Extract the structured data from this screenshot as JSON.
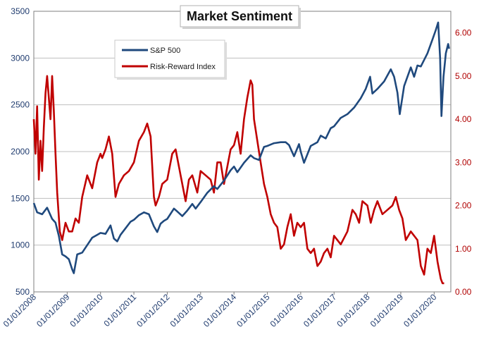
{
  "chart_data": {
    "type": "line",
    "title": "Market Sentiment",
    "colors": {
      "sp500": "#1f497d",
      "risk_reward": "#c00000",
      "grid": "#bfbfbf",
      "frame": "#7f7f7f"
    },
    "x_ticks": [
      "01/01/2008",
      "01/01/2009",
      "01/01/2010",
      "01/01/2011",
      "01/01/2012",
      "01/01/2013",
      "01/01/2014",
      "01/01/2015",
      "01/01/2016",
      "01/01/2017",
      "01/01/2018",
      "01/01/2019",
      "01/01/2020"
    ],
    "xlim": [
      2008.0,
      2020.5
    ],
    "left_axis": {
      "ylim": [
        500,
        3500
      ],
      "ticks": [
        "500",
        "1000",
        "1500",
        "2000",
        "2500",
        "3000",
        "3500"
      ]
    },
    "right_axis": {
      "ylim": [
        0.0,
        6.5
      ],
      "ticks": [
        "0.00",
        "1.00",
        "2.00",
        "3.00",
        "4.00",
        "5.00",
        "6.00"
      ]
    },
    "grid": "horizontal",
    "legend_position": "upper-left",
    "series": [
      {
        "name": "S&P 500",
        "axis": "left",
        "x": [
          2008.0,
          2008.1,
          2008.25,
          2008.4,
          2008.55,
          2008.65,
          2008.75,
          2008.85,
          2008.95,
          2009.05,
          2009.15,
          2009.2,
          2009.3,
          2009.45,
          2009.6,
          2009.75,
          2009.9,
          2010.0,
          2010.15,
          2010.3,
          2010.4,
          2010.5,
          2010.6,
          2010.75,
          2010.9,
          2011.0,
          2011.15,
          2011.3,
          2011.45,
          2011.6,
          2011.7,
          2011.8,
          2011.9,
          2012.0,
          2012.2,
          2012.3,
          2012.45,
          2012.6,
          2012.75,
          2012.85,
          2013.0,
          2013.2,
          2013.4,
          2013.5,
          2013.7,
          2013.9,
          2014.0,
          2014.1,
          2014.3,
          2014.5,
          2014.6,
          2014.75,
          2014.9,
          2015.0,
          2015.2,
          2015.4,
          2015.55,
          2015.65,
          2015.8,
          2015.95,
          2016.0,
          2016.1,
          2016.3,
          2016.5,
          2016.6,
          2016.75,
          2016.9,
          2017.0,
          2017.2,
          2017.4,
          2017.6,
          2017.8,
          2017.95,
          2018.08,
          2018.15,
          2018.3,
          2018.5,
          2018.7,
          2018.8,
          2018.9,
          2018.97,
          2019.1,
          2019.3,
          2019.4,
          2019.5,
          2019.6,
          2019.8,
          2019.95,
          2020.05,
          2020.12,
          2020.18,
          2020.22,
          2020.28,
          2020.35,
          2020.42,
          2020.45
        ],
        "values": [
          1450,
          1350,
          1330,
          1400,
          1280,
          1240,
          1100,
          900,
          880,
          850,
          740,
          700,
          900,
          920,
          1000,
          1080,
          1110,
          1130,
          1120,
          1210,
          1070,
          1040,
          1110,
          1180,
          1250,
          1270,
          1320,
          1350,
          1330,
          1200,
          1140,
          1230,
          1260,
          1280,
          1390,
          1360,
          1310,
          1370,
          1440,
          1390,
          1460,
          1560,
          1630,
          1600,
          1690,
          1800,
          1840,
          1780,
          1880,
          1960,
          1930,
          1910,
          2050,
          2060,
          2090,
          2100,
          2100,
          2070,
          1950,
          2080,
          2000,
          1880,
          2060,
          2100,
          2170,
          2140,
          2250,
          2270,
          2360,
          2400,
          2470,
          2570,
          2670,
          2800,
          2620,
          2670,
          2750,
          2880,
          2800,
          2630,
          2400,
          2700,
          2900,
          2800,
          2920,
          2910,
          3050,
          3200,
          3300,
          3380,
          3000,
          2380,
          2800,
          3050,
          3150,
          3100
        ],
        "label_visible": true
      },
      {
        "name": "Risk-Reward Index",
        "axis": "right",
        "x": [
          2008.0,
          2008.05,
          2008.1,
          2008.15,
          2008.2,
          2008.25,
          2008.3,
          2008.35,
          2008.4,
          2008.45,
          2008.5,
          2008.55,
          2008.6,
          2008.65,
          2008.7,
          2008.78,
          2008.85,
          2008.95,
          2009.05,
          2009.15,
          2009.25,
          2009.35,
          2009.45,
          2009.6,
          2009.75,
          2009.9,
          2010.0,
          2010.05,
          2010.15,
          2010.25,
          2010.35,
          2010.45,
          2010.55,
          2010.7,
          2010.85,
          2011.0,
          2011.15,
          2011.3,
          2011.4,
          2011.5,
          2011.6,
          2011.65,
          2011.75,
          2011.85,
          2012.0,
          2012.15,
          2012.25,
          2012.4,
          2012.55,
          2012.65,
          2012.75,
          2012.9,
          2013.0,
          2013.15,
          2013.3,
          2013.4,
          2013.5,
          2013.6,
          2013.7,
          2013.8,
          2013.9,
          2014.0,
          2014.1,
          2014.2,
          2014.3,
          2014.4,
          2014.5,
          2014.55,
          2014.6,
          2014.7,
          2014.8,
          2014.9,
          2015.0,
          2015.1,
          2015.2,
          2015.3,
          2015.4,
          2015.5,
          2015.6,
          2015.7,
          2015.8,
          2015.9,
          2016.0,
          2016.1,
          2016.2,
          2016.3,
          2016.4,
          2016.5,
          2016.6,
          2016.7,
          2016.8,
          2016.9,
          2017.0,
          2017.2,
          2017.4,
          2017.55,
          2017.65,
          2017.75,
          2017.85,
          2018.0,
          2018.1,
          2018.2,
          2018.3,
          2018.45,
          2018.6,
          2018.75,
          2018.85,
          2018.95,
          2019.05,
          2019.15,
          2019.3,
          2019.5,
          2019.6,
          2019.7,
          2019.8,
          2019.9,
          2020.0,
          2020.05,
          2020.1,
          2020.15,
          2020.2,
          2020.25,
          2020.3
        ],
        "values": [
          4.0,
          3.2,
          4.3,
          2.6,
          3.5,
          2.8,
          3.8,
          4.6,
          5.0,
          4.5,
          4.0,
          5.0,
          4.2,
          3.2,
          2.3,
          1.4,
          1.2,
          1.6,
          1.4,
          1.4,
          1.7,
          1.6,
          2.2,
          2.7,
          2.4,
          3.0,
          3.2,
          3.1,
          3.3,
          3.6,
          3.2,
          2.2,
          2.5,
          2.7,
          2.8,
          3.0,
          3.5,
          3.7,
          3.9,
          3.6,
          2.2,
          2.0,
          2.2,
          2.5,
          2.6,
          3.2,
          3.3,
          2.7,
          2.1,
          2.6,
          2.7,
          2.3,
          2.8,
          2.7,
          2.6,
          2.3,
          3.0,
          3.0,
          2.5,
          2.9,
          3.3,
          3.4,
          3.7,
          3.2,
          4.0,
          4.5,
          4.9,
          4.8,
          4.0,
          3.5,
          3.0,
          2.5,
          2.2,
          1.8,
          1.6,
          1.5,
          1.0,
          1.1,
          1.5,
          1.8,
          1.3,
          1.6,
          1.5,
          1.6,
          1.0,
          0.9,
          1.0,
          0.6,
          0.7,
          0.9,
          1.0,
          0.8,
          1.3,
          1.1,
          1.4,
          1.9,
          1.8,
          1.6,
          2.1,
          2.0,
          1.6,
          1.9,
          2.1,
          1.8,
          1.9,
          2.0,
          2.2,
          1.9,
          1.7,
          1.2,
          1.4,
          1.2,
          0.6,
          0.4,
          1.0,
          0.9,
          1.3,
          1.0,
          0.7,
          0.5,
          0.3,
          0.2,
          0.2
        ],
        "label_visible": true
      }
    ]
  }
}
